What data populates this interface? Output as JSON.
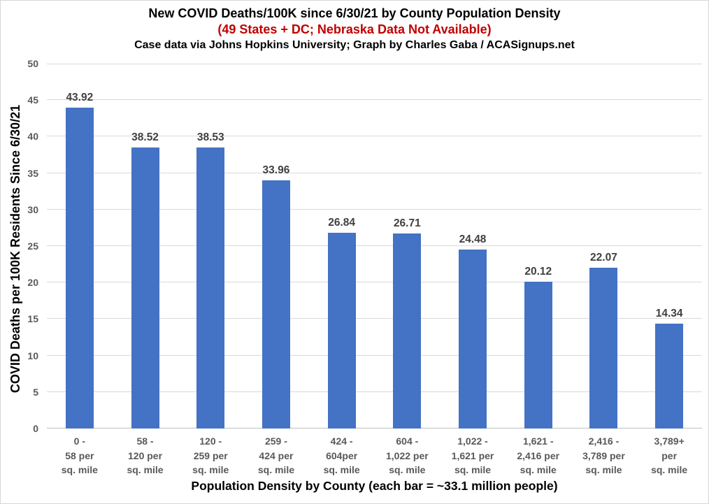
{
  "header": {
    "title": "New COVID Deaths/100K since 6/30/21 by County Population Density",
    "subtitle": "(49 States + DC; Nebraska Data Not Available)",
    "credit": "Case data via Johns Hopkins University; Graph by Charles Gaba / ACASignups.net"
  },
  "chart_data": {
    "type": "bar",
    "title": "New COVID Deaths/100K since 6/30/21 by County Population Density",
    "subtitle": "(49 States + DC; Nebraska Data Not Available)",
    "credit": "Case data via Johns Hopkins University; Graph by Charles Gaba / ACASignups.net",
    "categories": [
      "0 -\n58 per\nsq. mile",
      "58 -\n120 per\nsq. mile",
      "120 -\n259 per\nsq. mile",
      "259 -\n424 per\nsq. mile",
      "424 -\n604per\nsq. mile",
      "604 -\n1,022 per\nsq. mile",
      "1,022 -\n1,621 per\nsq. mile",
      "1,621 -\n2,416 per\nsq. mile",
      "2,416 -\n3,789 per\nsq. mile",
      "3,789+\nper\nsq. mile"
    ],
    "values": [
      43.92,
      38.52,
      38.53,
      33.96,
      26.84,
      26.71,
      24.48,
      20.12,
      22.07,
      14.34
    ],
    "value_labels": [
      "43.92",
      "38.52",
      "38.53",
      "33.96",
      "26.84",
      "26.71",
      "24.48",
      "20.12",
      "22.07",
      "14.34"
    ],
    "xlabel": "Population Density by County (each bar = ~33.1 million people)",
    "ylabel": "COVID Deaths per 100K Residents Since 6/30/21",
    "ylim": [
      0,
      50
    ],
    "yticks": [
      0,
      5,
      10,
      15,
      20,
      25,
      30,
      35,
      40,
      45,
      50
    ],
    "grid": true,
    "legend": "none"
  },
  "colors": {
    "bar_fill": "#4472c4",
    "subtitle_red": "#c00000",
    "gridline": "#d9d9d9",
    "axis_line": "#bfbfbf",
    "tick_text": "#595959",
    "value_text": "#404040"
  }
}
